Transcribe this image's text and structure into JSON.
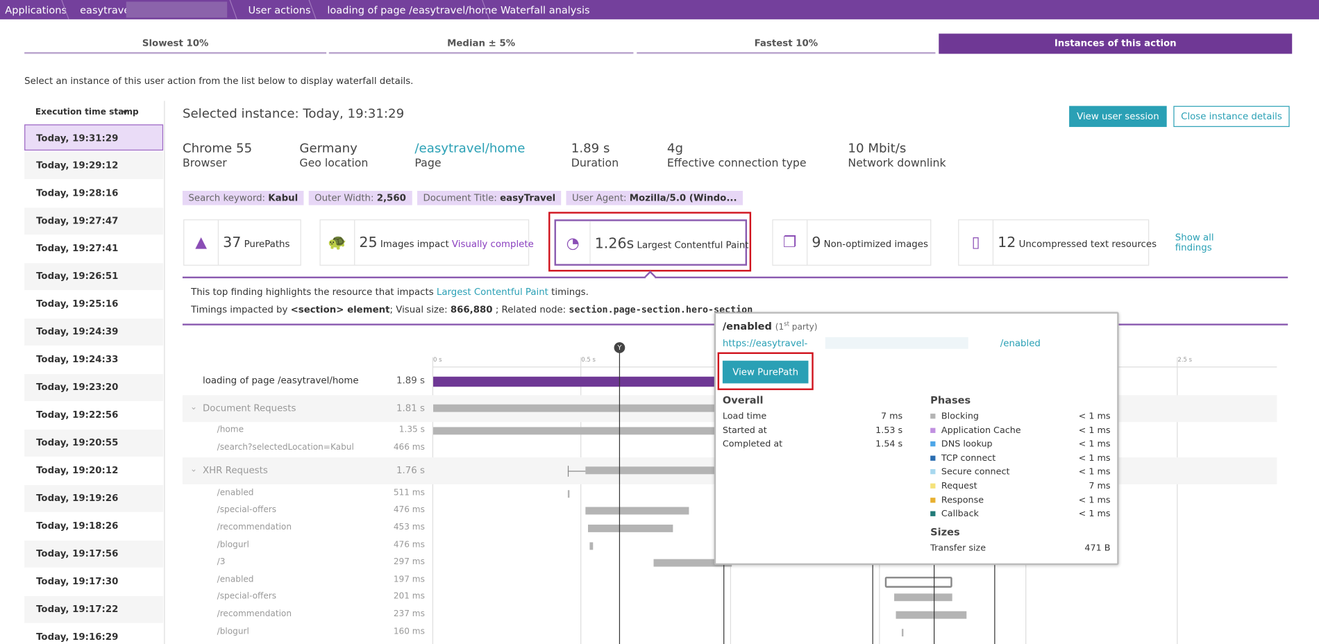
{
  "breadcrumbs": [
    "Applications",
    "easytravel-",
    "User actions",
    "loading of page /easytravel/home",
    "Waterfall analysis"
  ],
  "tabs": [
    "Slowest 10%",
    "Median ± 5%",
    "Fastest 10%",
    "Instances of this action"
  ],
  "instruction": "Select an instance of this user action from the list below to display waterfall details.",
  "instances": {
    "header": "Execution time stamp",
    "items": [
      "Today, 19:31:29",
      "Today, 19:29:12",
      "Today, 19:28:16",
      "Today, 19:27:47",
      "Today, 19:27:41",
      "Today, 19:26:51",
      "Today, 19:25:16",
      "Today, 19:24:39",
      "Today, 19:24:33",
      "Today, 19:23:20",
      "Today, 19:22:56",
      "Today, 19:20:55",
      "Today, 19:20:12",
      "Today, 19:19:26",
      "Today, 19:18:26",
      "Today, 19:17:56",
      "Today, 19:17:30",
      "Today, 19:17:22",
      "Today, 19:16:29"
    ]
  },
  "selected_title": "Selected instance: Today, 19:31:29",
  "buttons": [
    "View user session",
    "Close instance details"
  ],
  "stats": [
    {
      "value": "Chrome 55",
      "label": "Browser"
    },
    {
      "value": "Germany",
      "label": "Geo location"
    },
    {
      "value": "/easytravel/home",
      "label": "Page"
    },
    {
      "value": "1.89 s",
      "label": "Duration"
    },
    {
      "value": "4g",
      "label": "Effective connection type"
    },
    {
      "value": "10 Mbit/s",
      "label": "Network downlink"
    }
  ],
  "tags": [
    {
      "key": "Search keyword:",
      "value": "Kabul"
    },
    {
      "key": "Outer Width:",
      "value": "2,560"
    },
    {
      "key": "Document Title:",
      "value": "easyTravel"
    },
    {
      "key": "User Agent:",
      "value": "Mozilla/5.0 (Windo..."
    }
  ],
  "findings": [
    {
      "value": "37",
      "label": "PurePaths"
    },
    {
      "value": "25",
      "label": "Images impact",
      "link": "Visually complete"
    },
    {
      "value": "1.26s",
      "label": "Largest Contentful Paint"
    },
    {
      "value": "9",
      "label": "Non-optimized images"
    },
    {
      "value": "12",
      "label": "Uncompressed text resources"
    }
  ],
  "show_all": "Show all findings",
  "finding_text": {
    "line1": [
      "This top finding highlights the resource that impacts",
      "Largest Contentful Paint",
      "timings."
    ],
    "line2": [
      "Timings impacted by",
      "<section> element",
      "; Visual size:",
      "866,880",
      "; Related node:",
      "section.page-section.hero-section"
    ]
  },
  "axis": [
    "0 s",
    "0.5 s",
    "2.5 s"
  ],
  "marker": "Y",
  "rows": [
    {
      "name": "loading of page /easytravel/home",
      "duration": "1.89 s"
    },
    {
      "name": "Document Requests",
      "duration": "1.81 s"
    },
    {
      "name": "/home",
      "duration": "1.35 s"
    },
    {
      "name": "/search?selectedLocation=Kabul",
      "duration": "466 ms"
    },
    {
      "name": "XHR Requests",
      "duration": "1.76 s"
    },
    {
      "name": "/enabled",
      "duration": "511 ms"
    },
    {
      "name": "/special-offers",
      "duration": "476 ms"
    },
    {
      "name": "/recommendation",
      "duration": "453 ms"
    },
    {
      "name": "/blogurl",
      "duration": "476 ms"
    },
    {
      "name": "/3",
      "duration": "297 ms"
    },
    {
      "name": "/enabled",
      "duration": "197 ms"
    },
    {
      "name": "/special-offers",
      "duration": "201 ms"
    },
    {
      "name": "/recommendation",
      "duration": "237 ms"
    },
    {
      "name": "/blogurl",
      "duration": "160 ms"
    }
  ],
  "popup": {
    "title": "/enabled",
    "party": [
      "(1",
      "st",
      " party)"
    ],
    "url": [
      "https://easytravel-",
      "/enabled"
    ],
    "button": "View PurePath",
    "overall": {
      "title": "Overall",
      "rows": [
        [
          "Load time",
          "7 ms"
        ],
        [
          "Started at",
          "1.53 s"
        ],
        [
          "Completed at",
          "1.54 s"
        ]
      ]
    },
    "phases": {
      "title": "Phases",
      "rows": [
        [
          "Blocking",
          "< 1 ms"
        ],
        [
          "Application Cache",
          "< 1 ms"
        ],
        [
          "DNS lookup",
          "< 1 ms"
        ],
        [
          "TCP connect",
          "< 1 ms"
        ],
        [
          "Secure connect",
          "< 1 ms"
        ],
        [
          "Request",
          "7 ms"
        ],
        [
          "Response",
          "< 1 ms"
        ],
        [
          "Callback",
          "< 1 ms"
        ]
      ]
    },
    "sizes": {
      "title": "Sizes",
      "rows": [
        [
          "Transfer size",
          "471 B"
        ]
      ]
    }
  }
}
